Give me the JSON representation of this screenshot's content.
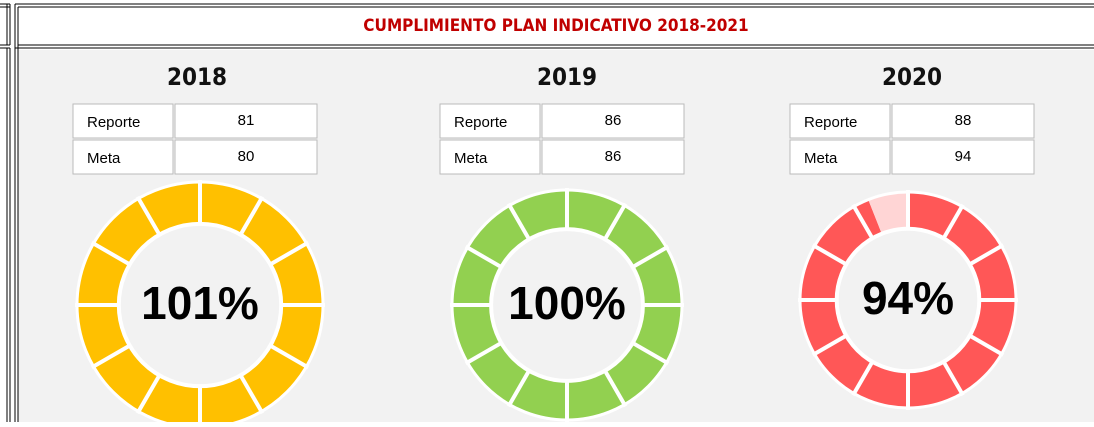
{
  "header": {
    "title": "CUMPLIMIENTO PLAN INDICATIVO 2018-2021"
  },
  "chart_data": [
    {
      "type": "donut",
      "title": "2018",
      "table": {
        "rows": [
          [
            "Reporte",
            "81"
          ],
          [
            "Meta",
            "80"
          ]
        ]
      },
      "value": 101,
      "value_labels": "101%",
      "color": "#ffc000"
    },
    {
      "type": "donut",
      "title": "2019",
      "table": {
        "rows": [
          [
            "Reporte",
            "86"
          ],
          [
            "Meta",
            "86"
          ]
        ]
      },
      "value": 100,
      "value_labels": "100%",
      "color": "#92d050"
    },
    {
      "type": "donut",
      "title": "2020",
      "table": {
        "rows": [
          [
            "Reporte",
            "88"
          ],
          [
            "Meta",
            "94"
          ]
        ]
      },
      "value": 94,
      "value_labels": "94%",
      "color": "#ff5757",
      "remainder_color": "#ffd5d5"
    }
  ]
}
